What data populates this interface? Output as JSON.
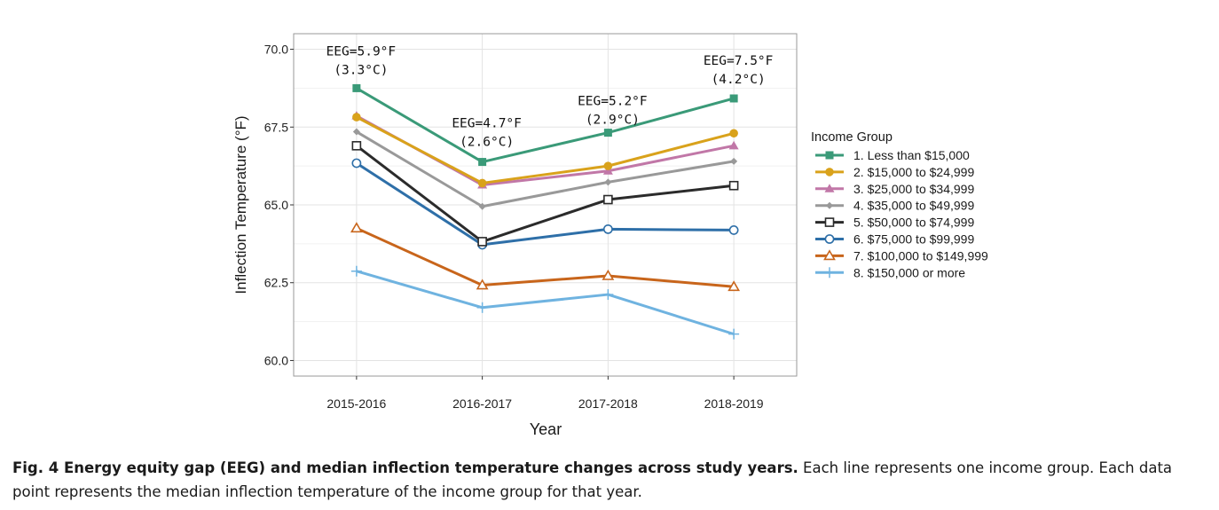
{
  "chart_data": {
    "type": "line",
    "xlabel": "Year",
    "ylabel": "Inflection Temperature (°F)",
    "categories": [
      "2015-2016",
      "2016-2017",
      "2017-2018",
      "2018-2019"
    ],
    "ylim": [
      59.5,
      70.5
    ],
    "yticks": [
      "60.0",
      "62.5",
      "65.0",
      "67.5",
      "70.0"
    ],
    "grid": true,
    "legend": {
      "title": "Income Group",
      "placement": "right"
    },
    "series": [
      {
        "name": "1. Less than $15,000",
        "values": [
          68.75,
          66.38,
          67.32,
          68.42
        ],
        "color": "#3a9a78",
        "marker": "square-filled"
      },
      {
        "name": "2. $15,000 to $24,999",
        "values": [
          67.82,
          65.7,
          66.25,
          67.3
        ],
        "color": "#d9a21b",
        "marker": "circle-filled"
      },
      {
        "name": "3. $25,000 to $34,999",
        "values": [
          67.86,
          65.64,
          66.09,
          66.9
        ],
        "color": "#c177a7",
        "marker": "triangle-filled"
      },
      {
        "name": "4. $35,000 to $49,999",
        "values": [
          67.35,
          64.95,
          65.73,
          66.4
        ],
        "color": "#999999",
        "marker": "diamond-filled"
      },
      {
        "name": "5. $50,000 to $74,999",
        "values": [
          66.9,
          63.82,
          65.17,
          65.62
        ],
        "color": "#2b2b2b",
        "marker": "square-open"
      },
      {
        "name": "6. $75,000 to $99,999",
        "values": [
          66.34,
          63.72,
          64.22,
          64.19
        ],
        "color": "#2e6fa8",
        "marker": "circle-open"
      },
      {
        "name": "7. $100,000 to $149,999",
        "values": [
          64.25,
          62.42,
          62.72,
          62.37
        ],
        "color": "#c8651b",
        "marker": "triangle-open"
      },
      {
        "name": "8. $150,000 or more",
        "values": [
          62.87,
          61.7,
          62.12,
          60.85
        ],
        "color": "#6fb3e0",
        "marker": "plus"
      }
    ],
    "annotations": [
      {
        "category": "2015-2016",
        "line1": "EEG=5.9°F",
        "line2": "(3.3°C)",
        "y": 69.8
      },
      {
        "category": "2016-2017",
        "line1": "EEG=4.7°F",
        "line2": "(2.6°C)",
        "y": 67.5
      },
      {
        "category": "2017-2018",
        "line1": "EEG=5.2°F",
        "line2": "(2.9°C)",
        "y": 68.2
      },
      {
        "category": "2018-2019",
        "line1": "EEG=7.5°F",
        "line2": "(4.2°C)",
        "y": 69.5
      }
    ]
  },
  "caption": {
    "bold": "Fig. 4 Energy equity gap (EEG) and median inflection temperature changes across study years.",
    "text": " Each line represents one income group. Each data point represents the median inflection temperature of the income group for that year."
  }
}
